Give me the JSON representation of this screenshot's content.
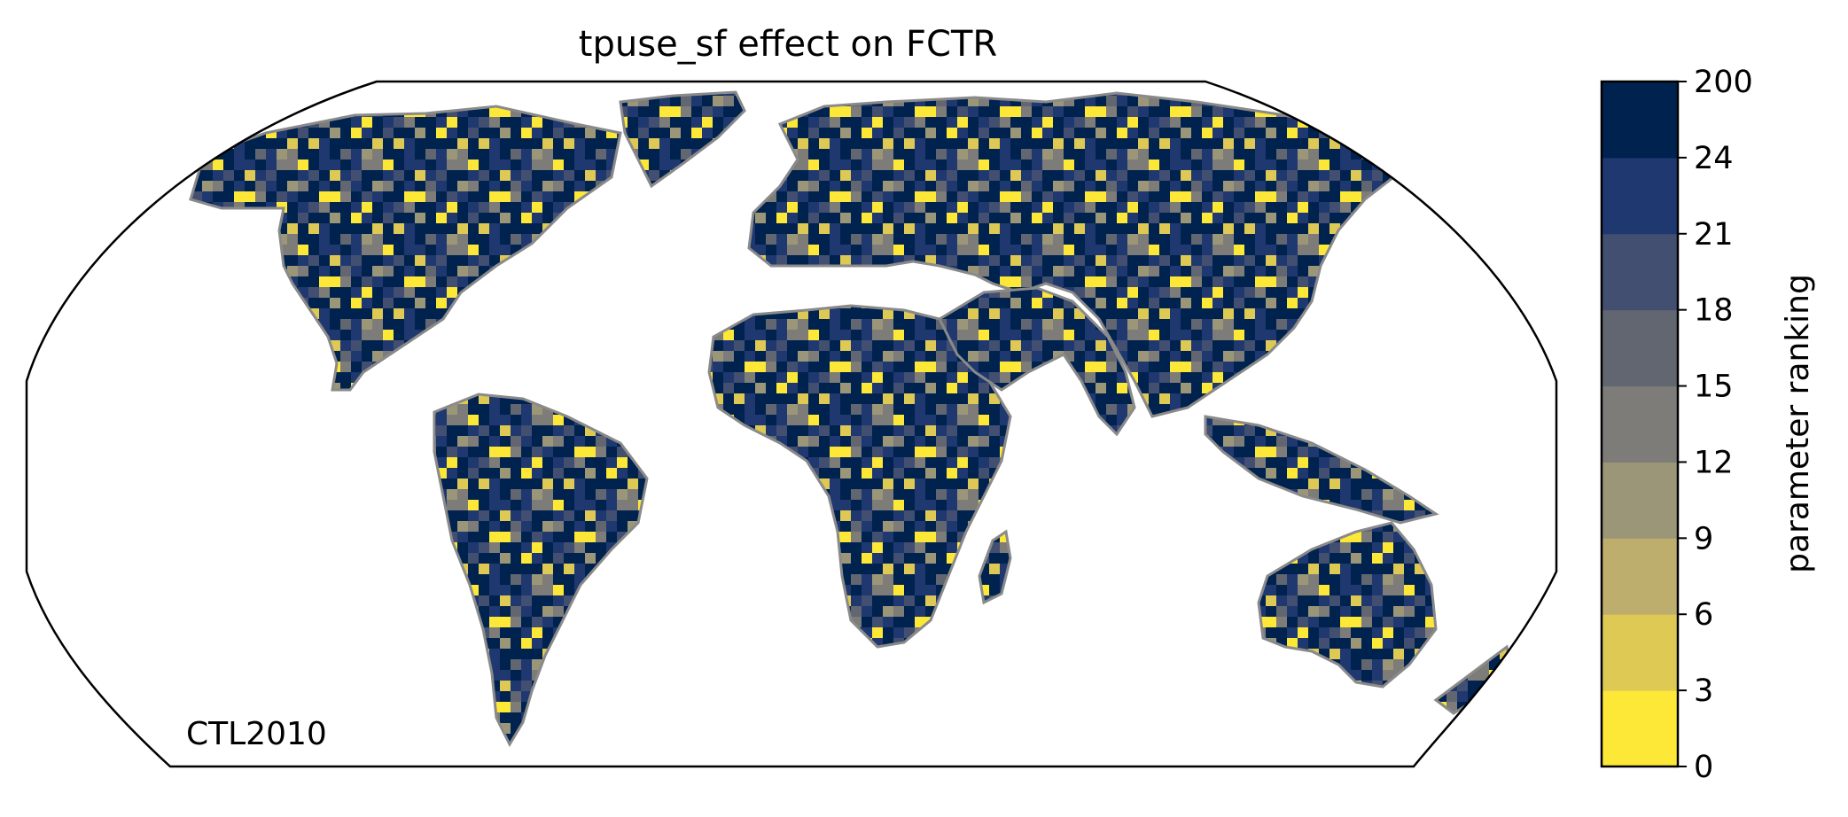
{
  "title": "tpuse_sf effect on FCTR",
  "map_label": "CTL2010",
  "colorbar": {
    "label": "parameter ranking",
    "ticks": [
      "0",
      "3",
      "6",
      "9",
      "12",
      "15",
      "18",
      "21",
      "24",
      "200"
    ],
    "colors": [
      "#fde737",
      "#dfc955",
      "#bdae6d",
      "#9c9679",
      "#7d7c78",
      "#616670",
      "#424f70",
      "#1f3870",
      "#00224e"
    ]
  },
  "legend_colors": {
    "coastline": "#8a8a8a",
    "ocean": "#ffffff",
    "frame": "#000000"
  }
}
